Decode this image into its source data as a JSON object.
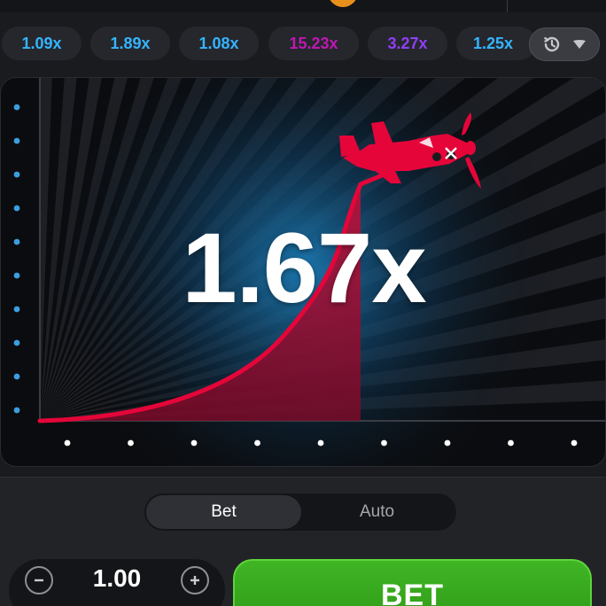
{
  "history": {
    "items": [
      {
        "label": "1.09x",
        "color": "#34b4ff"
      },
      {
        "label": "1.89x",
        "color": "#34b4ff"
      },
      {
        "label": "1.08x",
        "color": "#34b4ff"
      },
      {
        "label": "15.23x",
        "color": "#c017b4"
      },
      {
        "label": "3.27x",
        "color": "#913ef8"
      },
      {
        "label": "1.25x",
        "color": "#34b4ff"
      }
    ],
    "toggle_icons": [
      "history-icon",
      "chevron-down-icon"
    ]
  },
  "game": {
    "multiplier": "1.67x",
    "curve_color": "#e50539",
    "plane_color": "#e50539",
    "axis_dot_color_y": "#3a9fe0",
    "axis_dot_color_x": "#ffffff"
  },
  "controls": {
    "tabs": [
      {
        "label": "Bet",
        "active": true
      },
      {
        "label": "Auto",
        "active": false
      }
    ],
    "stake": {
      "value": "1.00",
      "minus_icon": "minus-icon",
      "plus_icon": "plus-icon"
    },
    "bet_button_label": "BET",
    "bet_button_color": "#3fb524"
  }
}
